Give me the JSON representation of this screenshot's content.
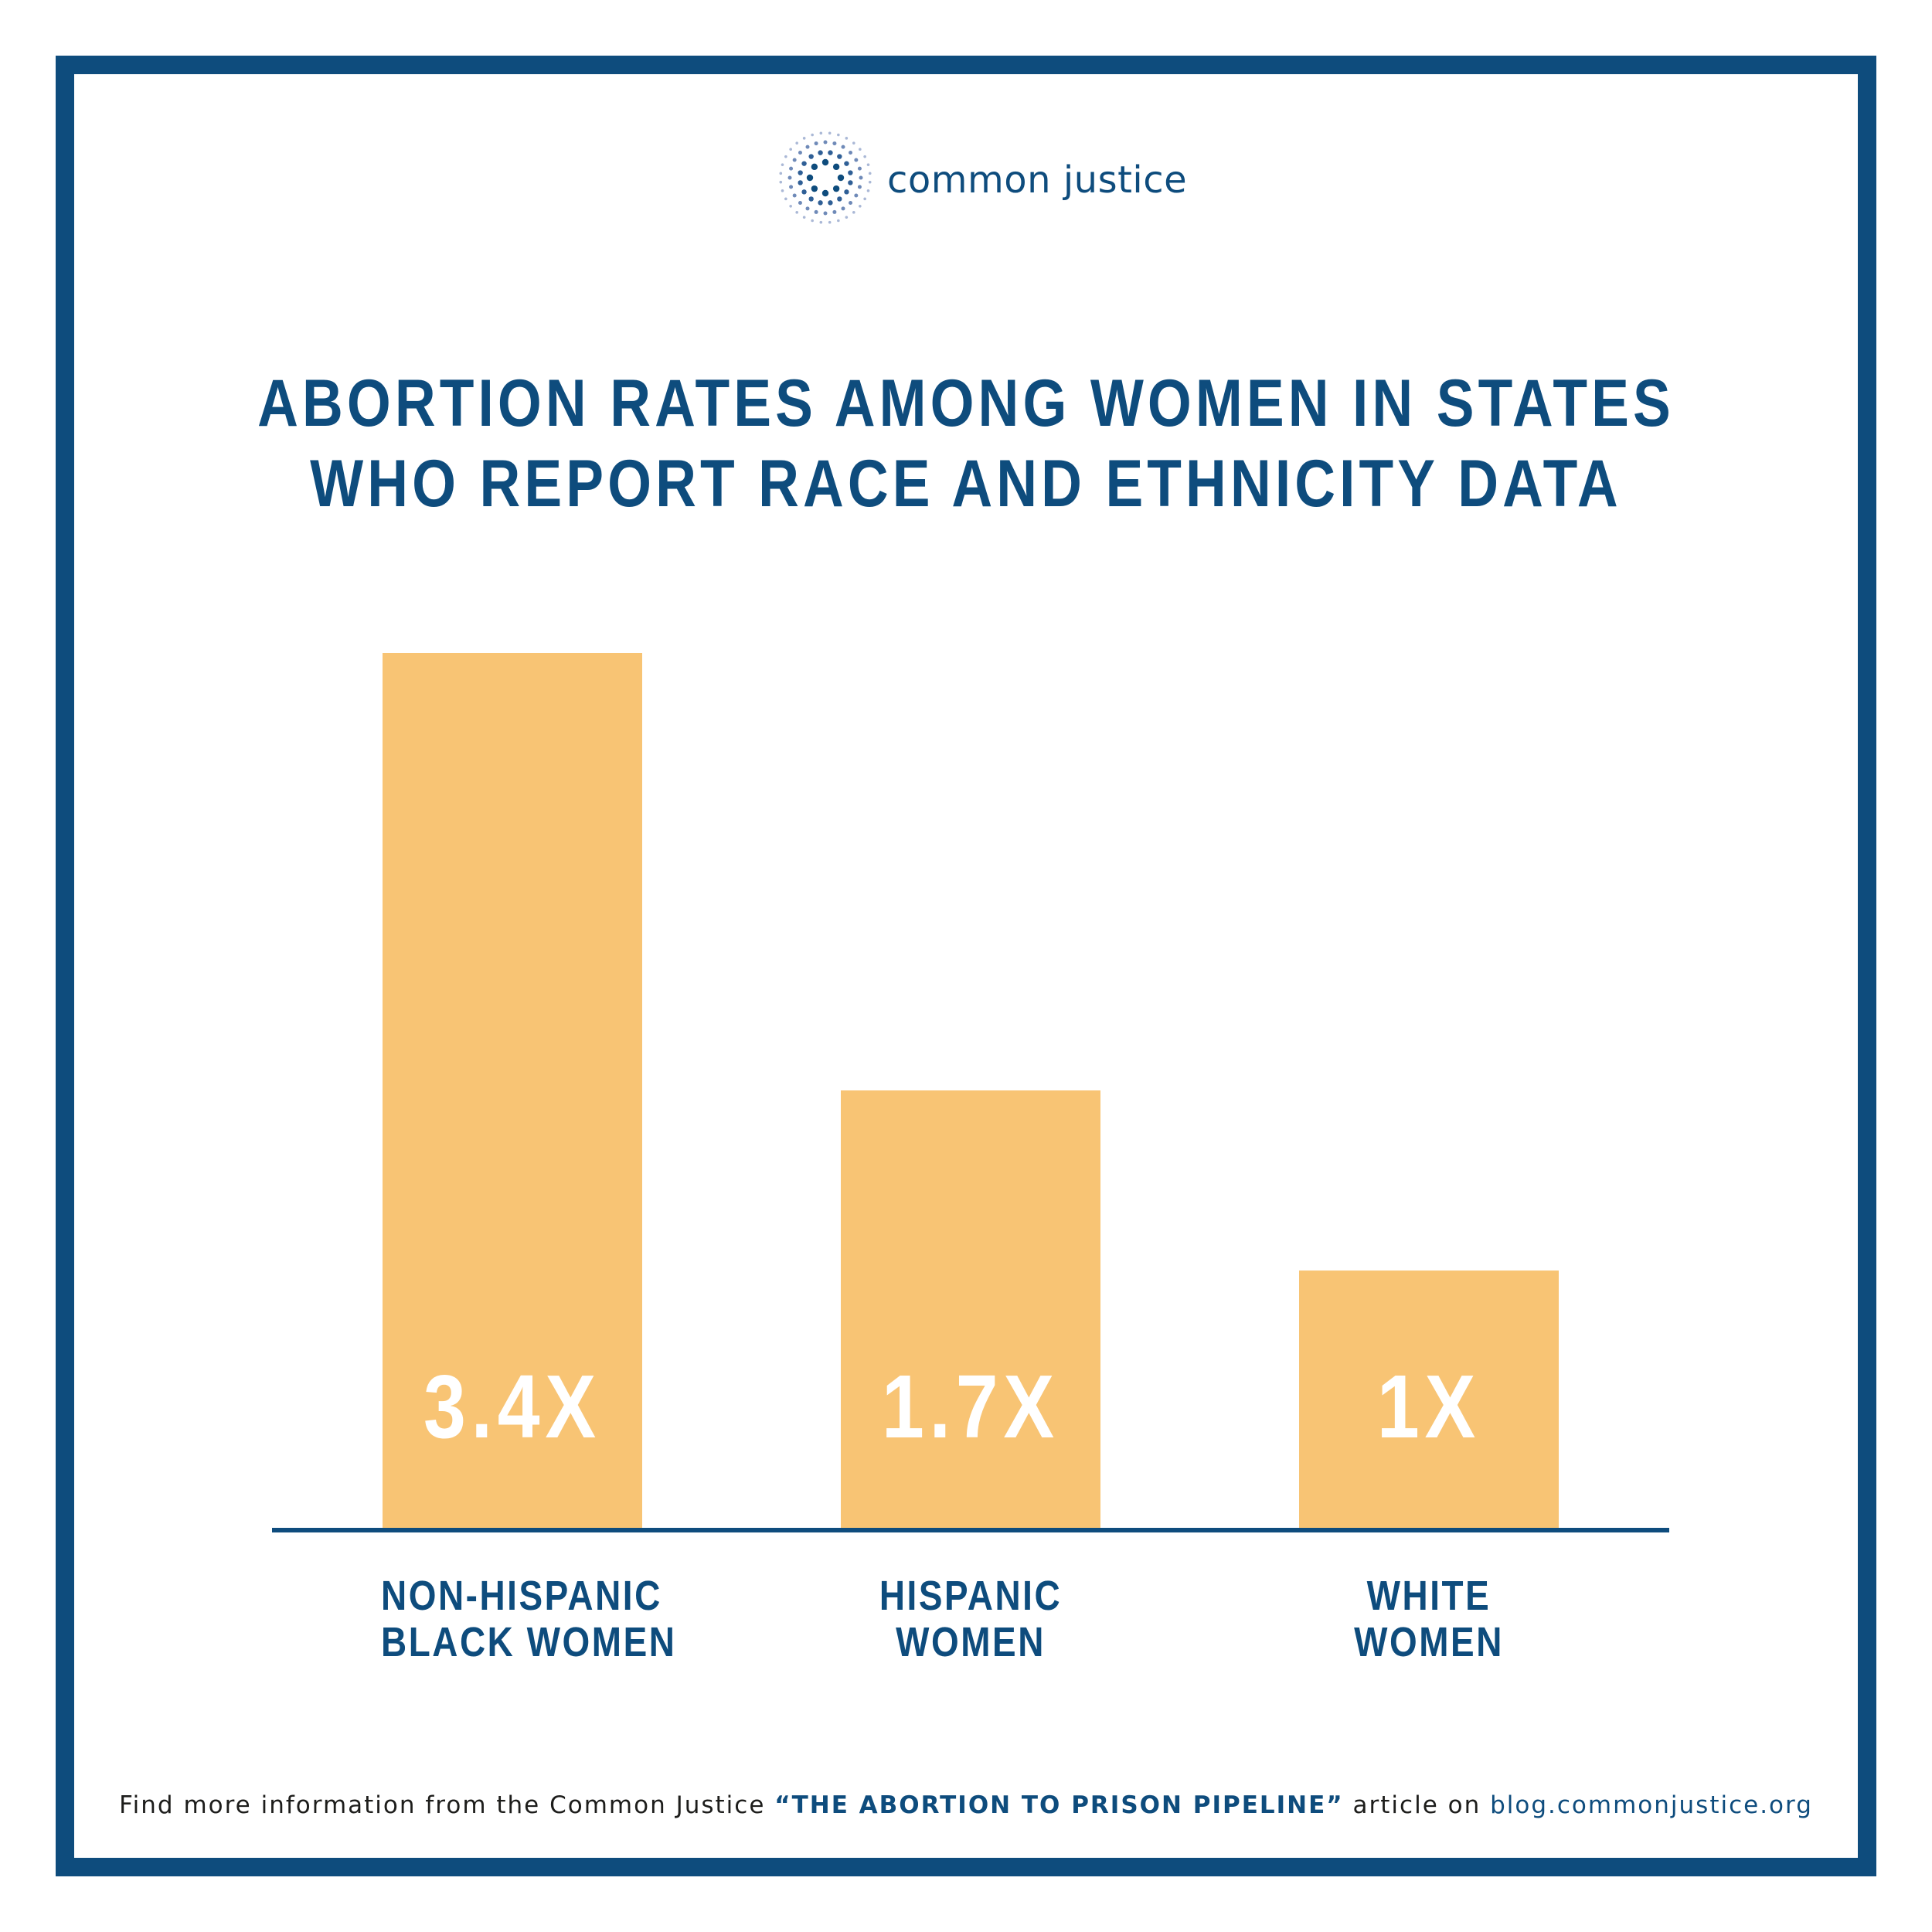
{
  "brand": {
    "name": "common justice",
    "color": "#0e4c7d"
  },
  "title": {
    "line1": "ABORTION RATES AMONG WOMEN IN STATES",
    "line2": "WHO REPORT RACE AND ETHNICITY DATA"
  },
  "chart_data": {
    "type": "bar",
    "title": "ABORTION RATES AMONG WOMEN IN STATES WHO REPORT RACE AND ETHNICITY DATA",
    "categories": [
      {
        "line1": "NON-HISPANIC",
        "line2": "BLACK WOMEN"
      },
      {
        "line1": "HISPANIC",
        "line2": "WOMEN"
      },
      {
        "line1": "WHITE",
        "line2": "WOMEN"
      }
    ],
    "values": [
      3.4,
      1.7,
      1
    ],
    "value_labels": [
      "3.4X",
      "1.7X",
      "1X"
    ],
    "bar_color": "#f8c474",
    "label_color": "#ffffff",
    "axis_color": "#0e4c7d",
    "ylim": [
      0,
      3.4
    ],
    "grid": false,
    "legend": "none"
  },
  "footer": {
    "prefix": "Find more information from the Common Justice ",
    "article": "“THE ABORTION TO PRISON PIPELINE”",
    "middle": " article on ",
    "link": "blog.commonjustice.org"
  }
}
